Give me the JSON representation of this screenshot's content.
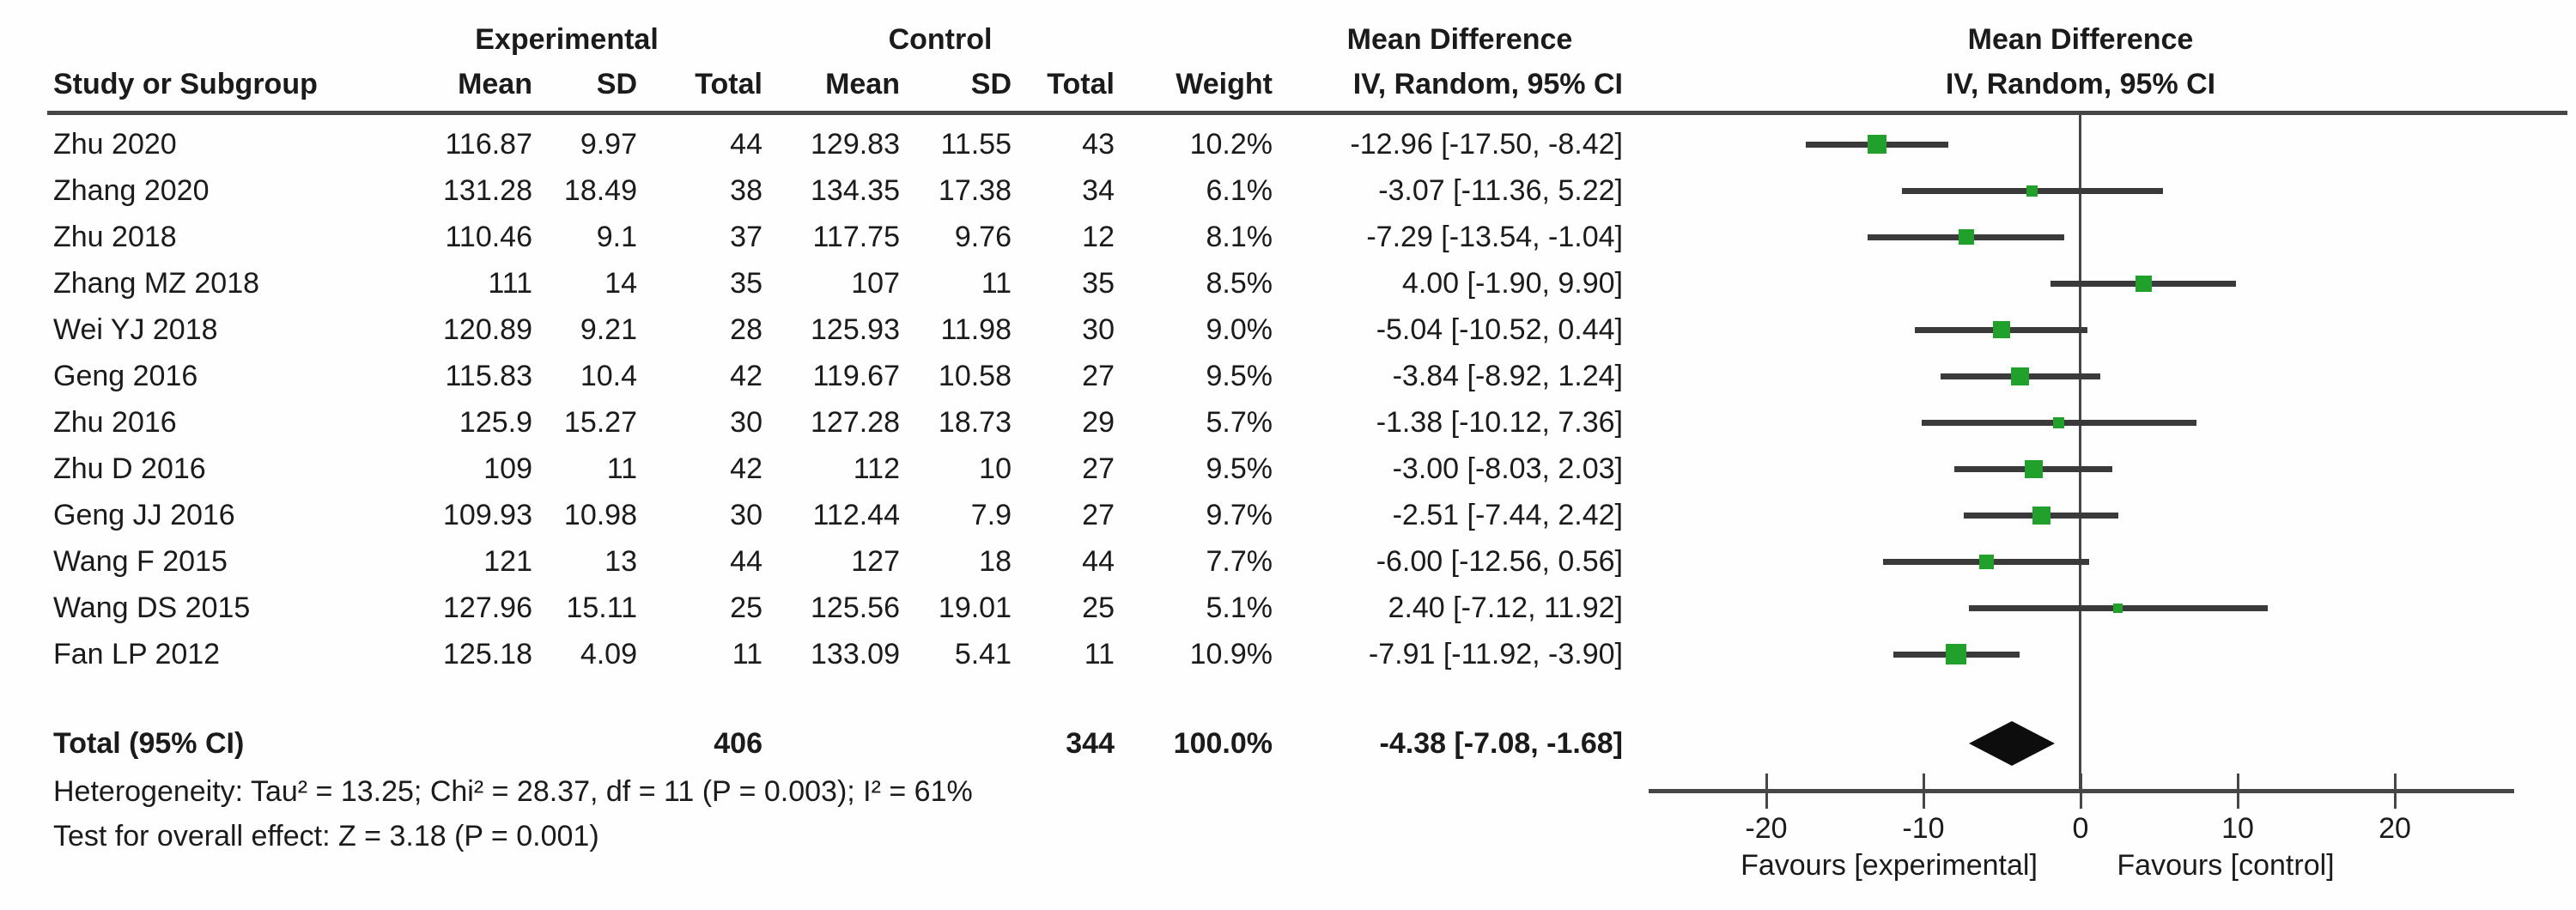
{
  "chart_data": {
    "type": "forest",
    "effect_measure": "Mean Difference",
    "model": "IV, Random, 95% CI",
    "group_headers": {
      "experimental": "Experimental",
      "control": "Control",
      "md_col_line1": "Mean Difference",
      "md_col_line2": "IV, Random, 95% CI",
      "md_plot_line1": "Mean Difference",
      "md_plot_line2": "IV, Random, 95% CI"
    },
    "col_headers": {
      "study": "Study or Subgroup",
      "e_mean": "Mean",
      "e_sd": "SD",
      "e_total": "Total",
      "c_mean": "Mean",
      "c_sd": "SD",
      "c_total": "Total",
      "weight": "Weight"
    },
    "studies": [
      {
        "study": "Zhu 2020",
        "e_mean": "116.87",
        "e_sd": "9.97",
        "e_total": "44",
        "c_mean": "129.83",
        "c_sd": "11.55",
        "c_total": "43",
        "weight": "10.2%",
        "ci": "-12.96 [-17.50, -8.42]",
        "md": -12.96,
        "lo": -17.5,
        "hi": -8.42,
        "weight_pct": 10.2
      },
      {
        "study": "Zhang 2020",
        "e_mean": "131.28",
        "e_sd": "18.49",
        "e_total": "38",
        "c_mean": "134.35",
        "c_sd": "17.38",
        "c_total": "34",
        "weight": "6.1%",
        "ci": "-3.07 [-11.36, 5.22]",
        "md": -3.07,
        "lo": -11.36,
        "hi": 5.22,
        "weight_pct": 6.1
      },
      {
        "study": "Zhu 2018",
        "e_mean": "110.46",
        "e_sd": "9.1",
        "e_total": "37",
        "c_mean": "117.75",
        "c_sd": "9.76",
        "c_total": "12",
        "weight": "8.1%",
        "ci": "-7.29 [-13.54, -1.04]",
        "md": -7.29,
        "lo": -13.54,
        "hi": -1.04,
        "weight_pct": 8.1
      },
      {
        "study": "Zhang MZ 2018",
        "e_mean": "111",
        "e_sd": "14",
        "e_total": "35",
        "c_mean": "107",
        "c_sd": "11",
        "c_total": "35",
        "weight": "8.5%",
        "ci": "4.00 [-1.90, 9.90]",
        "md": 4.0,
        "lo": -1.9,
        "hi": 9.9,
        "weight_pct": 8.5
      },
      {
        "study": "Wei YJ 2018",
        "e_mean": "120.89",
        "e_sd": "9.21",
        "e_total": "28",
        "c_mean": "125.93",
        "c_sd": "11.98",
        "c_total": "30",
        "weight": "9.0%",
        "ci": "-5.04 [-10.52, 0.44]",
        "md": -5.04,
        "lo": -10.52,
        "hi": 0.44,
        "weight_pct": 9.0
      },
      {
        "study": "Geng 2016",
        "e_mean": "115.83",
        "e_sd": "10.4",
        "e_total": "42",
        "c_mean": "119.67",
        "c_sd": "10.58",
        "c_total": "27",
        "weight": "9.5%",
        "ci": "-3.84 [-8.92, 1.24]",
        "md": -3.84,
        "lo": -8.92,
        "hi": 1.24,
        "weight_pct": 9.5
      },
      {
        "study": "Zhu 2016",
        "e_mean": "125.9",
        "e_sd": "15.27",
        "e_total": "30",
        "c_mean": "127.28",
        "c_sd": "18.73",
        "c_total": "29",
        "weight": "5.7%",
        "ci": "-1.38 [-10.12, 7.36]",
        "md": -1.38,
        "lo": -10.12,
        "hi": 7.36,
        "weight_pct": 5.7
      },
      {
        "study": "Zhu D 2016",
        "e_mean": "109",
        "e_sd": "11",
        "e_total": "42",
        "c_mean": "112",
        "c_sd": "10",
        "c_total": "27",
        "weight": "9.5%",
        "ci": "-3.00 [-8.03, 2.03]",
        "md": -3.0,
        "lo": -8.03,
        "hi": 2.03,
        "weight_pct": 9.5
      },
      {
        "study": "Geng JJ 2016",
        "e_mean": "109.93",
        "e_sd": "10.98",
        "e_total": "30",
        "c_mean": "112.44",
        "c_sd": "7.9",
        "c_total": "27",
        "weight": "9.7%",
        "ci": "-2.51 [-7.44, 2.42]",
        "md": -2.51,
        "lo": -7.44,
        "hi": 2.42,
        "weight_pct": 9.7
      },
      {
        "study": "Wang F 2015",
        "e_mean": "121",
        "e_sd": "13",
        "e_total": "44",
        "c_mean": "127",
        "c_sd": "18",
        "c_total": "44",
        "weight": "7.7%",
        "ci": "-6.00 [-12.56, 0.56]",
        "md": -6.0,
        "lo": -12.56,
        "hi": 0.56,
        "weight_pct": 7.7
      },
      {
        "study": "Wang DS 2015",
        "e_mean": "127.96",
        "e_sd": "15.11",
        "e_total": "25",
        "c_mean": "125.56",
        "c_sd": "19.01",
        "c_total": "25",
        "weight": "5.1%",
        "ci": "2.40 [-7.12, 11.92]",
        "md": 2.4,
        "lo": -7.12,
        "hi": 11.92,
        "weight_pct": 5.1
      },
      {
        "study": "Fan LP 2012",
        "e_mean": "125.18",
        "e_sd": "4.09",
        "e_total": "11",
        "c_mean": "133.09",
        "c_sd": "5.41",
        "c_total": "11",
        "weight": "10.9%",
        "ci": "-7.91 [-11.92, -3.90]",
        "md": -7.91,
        "lo": -11.92,
        "hi": -3.9,
        "weight_pct": 10.9
      }
    ],
    "total": {
      "label": "Total (95% CI)",
      "e_total": "406",
      "c_total": "344",
      "weight": "100.0%",
      "ci": "-4.38 [-7.08, -1.68]",
      "md": -4.38,
      "lo": -7.08,
      "hi": -1.68
    },
    "footnotes": {
      "heterogeneity": "Heterogeneity: Tau² = 13.25; Chi² = 28.37, df = 11 (P = 0.003); I² = 61%",
      "overall_effect": "Test for overall effect: Z = 3.18 (P = 0.001)"
    },
    "axis": {
      "ticks": [
        -20,
        -10,
        0,
        10,
        20
      ],
      "tick_labels": [
        "-20",
        "-10",
        "0",
        "10",
        "20"
      ],
      "null_value": 0,
      "display_range": [
        -27.5,
        27.6
      ],
      "favours_left": "Favours [experimental]",
      "favours_right": "Favours [control]"
    },
    "colors": {
      "marker_green": "#21A12C",
      "ci_line": "#3a3a3a",
      "rule": "#474747",
      "diamond": "#0d0d0d",
      "text": "#1b1b1b"
    }
  }
}
